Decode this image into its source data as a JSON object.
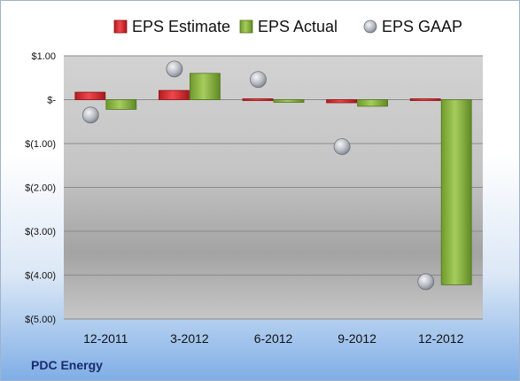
{
  "company": "PDC Energy",
  "chart_data": {
    "type": "bar",
    "categories": [
      "12-2011",
      "3-2012",
      "6-2012",
      "9-2012",
      "12-2012"
    ],
    "series": [
      {
        "name": "EPS Estimate",
        "kind": "bar",
        "color": "#d9262c",
        "values": [
          0.17,
          0.21,
          0.0,
          -0.07,
          -0.02
        ]
      },
      {
        "name": "EPS Actual",
        "kind": "bar",
        "color": "#8db340",
        "values": [
          -0.22,
          0.6,
          -0.06,
          -0.15,
          -4.22
        ]
      },
      {
        "name": "EPS GAAP",
        "kind": "marker",
        "color": "#b8bcc4",
        "values": [
          -0.35,
          0.7,
          0.46,
          -1.07,
          -4.15
        ]
      }
    ],
    "y_ticks": [
      1.0,
      0.0,
      -1.0,
      -2.0,
      -3.0,
      -4.0,
      -5.0
    ],
    "y_tick_labels": [
      "$1.00",
      "$-",
      "$(1.00)",
      "$(2.00)",
      "$(3.00)",
      "$(4.00)",
      "$(5.00)"
    ],
    "ylim": [
      -5.0,
      1.0
    ],
    "grid": true,
    "legend_position": "top"
  }
}
